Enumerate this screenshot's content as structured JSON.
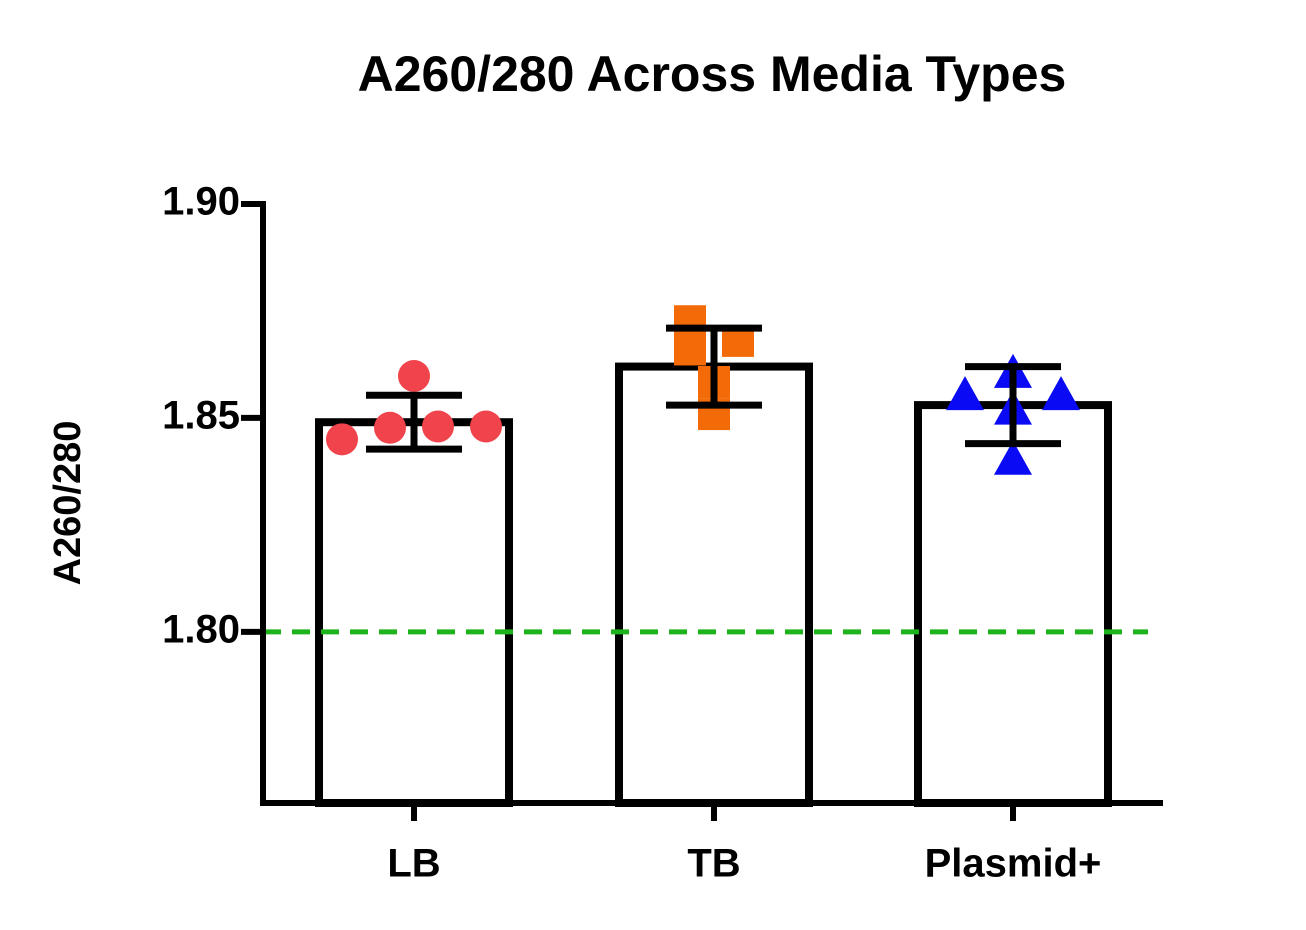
{
  "chart_data": {
    "type": "bar",
    "title": "A260/280 Across Media Types",
    "ylabel": "A260/280",
    "categories": [
      "LB",
      "TB",
      "Plasmid+"
    ],
    "values": [
      1.849,
      1.862,
      1.853
    ],
    "errors": [
      0.0063,
      0.009,
      0.009
    ],
    "points": [
      [
        1.845,
        1.8477,
        1.8598,
        1.848,
        1.848
      ],
      [
        1.8726,
        1.868,
        1.866,
        1.8584,
        1.8509
      ],
      [
        1.8603,
        1.8551,
        1.8551,
        1.8517,
        1.84
      ]
    ],
    "point_colors": [
      "#f0434b",
      "#f36b08",
      "#0a0af5"
    ],
    "markers": [
      "circle",
      "square",
      "triangle"
    ],
    "ylim": [
      1.76,
      1.9
    ],
    "yticks": [
      {
        "value": 1.9,
        "label": "1.90"
      },
      1.85,
      {
        "value": 1.8,
        "label": "1.80"
      }
    ],
    "reference_line": {
      "value": 1.8,
      "color": "#1db31d"
    }
  }
}
